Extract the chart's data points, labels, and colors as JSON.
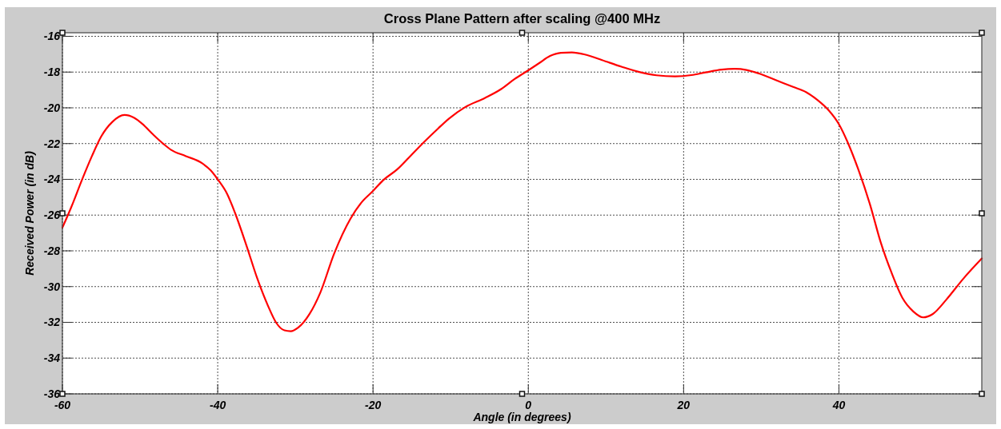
{
  "chart_data": {
    "type": "line",
    "title": "Cross Plane Pattern after scaling @400 MHz",
    "xlabel": "Angle (in degrees)",
    "ylabel": "Received Power (in dB)",
    "x": [
      -60,
      -58.9,
      -57.5,
      -56.2,
      -55.0,
      -53.6,
      -52.0,
      -50.8,
      -49.7,
      -48.3,
      -46.9,
      -46.0,
      -44.1,
      -42.0,
      -40.9,
      -40.0,
      -38.8,
      -37.75,
      -36.3,
      -34.9,
      -33.5,
      -32.5,
      -31.4,
      -30.6,
      -29.65,
      -28.2,
      -26.8,
      -25.0,
      -22.9,
      -21.5,
      -20.0,
      -18.7,
      -16.9,
      -15.2,
      -13.4,
      -11.6,
      -10.2,
      -8.1,
      -5.6,
      -3.5,
      -1.8,
      0,
      1.4,
      2.8,
      4.2,
      5.6,
      7.4,
      9.5,
      12.0,
      14.5,
      16.5,
      18.9,
      21.0,
      22.8,
      24.9,
      26.6,
      28.1,
      29.8,
      32.0,
      34.1,
      35.8,
      37.2,
      38.7,
      40.0,
      41.1,
      42.5,
      44.0,
      45.4,
      46.8,
      48.2,
      49.6,
      50.85,
      52.1,
      53.85,
      56.0,
      58.4
    ],
    "series": [
      {
        "color": "#ff0000",
        "values": [
          -26.7,
          -25.6,
          -24.05,
          -22.7,
          -21.6,
          -20.8,
          -20.4,
          -20.55,
          -20.9,
          -21.5,
          -22.05,
          -22.35,
          -22.7,
          -23.1,
          -23.5,
          -24.0,
          -24.8,
          -25.9,
          -27.7,
          -29.55,
          -31.1,
          -32.0,
          -32.45,
          -32.5,
          -32.3,
          -31.55,
          -30.35,
          -28.15,
          -26.2,
          -25.3,
          -24.65,
          -24.05,
          -23.45,
          -22.7,
          -21.9,
          -21.15,
          -20.6,
          -19.95,
          -19.45,
          -18.95,
          -18.4,
          -17.9,
          -17.5,
          -17.1,
          -16.92,
          -16.9,
          -17.03,
          -17.33,
          -17.7,
          -18.02,
          -18.18,
          -18.24,
          -18.17,
          -18.02,
          -17.86,
          -17.82,
          -17.88,
          -18.09,
          -18.47,
          -18.83,
          -19.13,
          -19.55,
          -20.15,
          -20.92,
          -21.9,
          -23.45,
          -25.4,
          -27.55,
          -29.25,
          -30.65,
          -31.4,
          -31.72,
          -31.53,
          -30.72,
          -29.57,
          -28.43
        ]
      }
    ],
    "xlim": [
      -60,
      58.4
    ],
    "ylim": [
      -36,
      -15.8
    ],
    "xticks": [
      -60,
      -40,
      -20,
      0,
      20,
      40
    ],
    "yticks": [
      -36,
      -34,
      -32,
      -30,
      -28,
      -26,
      -24,
      -22,
      -20,
      -18,
      -16
    ],
    "grid": true,
    "line_style": "solid"
  }
}
